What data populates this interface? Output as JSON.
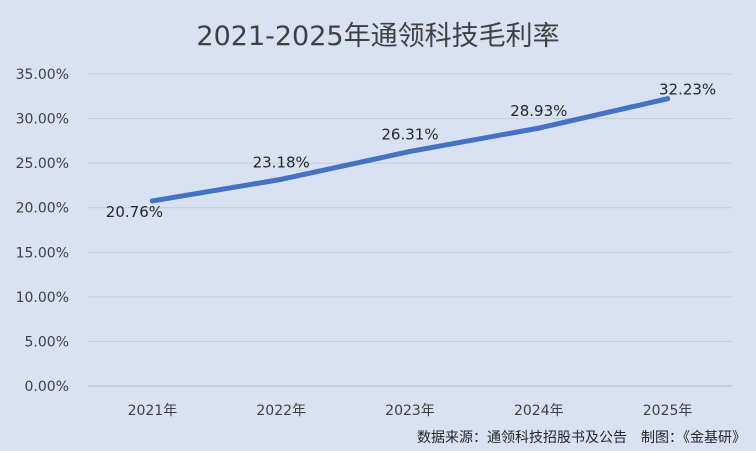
{
  "chart_data": {
    "type": "line",
    "title": "2021-2025年通领科技毛利率",
    "categories": [
      "2021年",
      "2022年",
      "2023年",
      "2024年",
      "2025年"
    ],
    "series": [
      {
        "values": [
          20.76,
          23.18,
          26.31,
          28.93,
          32.23
        ]
      }
    ],
    "data_labels": [
      "20.76%",
      "23.18%",
      "26.31%",
      "28.93%",
      "32.23%"
    ],
    "y_ticks": [
      "0.00%",
      "5.00%",
      "10.00%",
      "15.00%",
      "20.00%",
      "25.00%",
      "30.00%",
      "35.00%"
    ],
    "ylim": [
      0,
      35
    ],
    "y_step": 5,
    "grid": true,
    "legend": "none"
  },
  "source_note": "数据来源：通领科技招股书及公告　制图：《金基研》",
  "colors": {
    "background": "#d9e2f3",
    "series_line": "#4472c4"
  }
}
